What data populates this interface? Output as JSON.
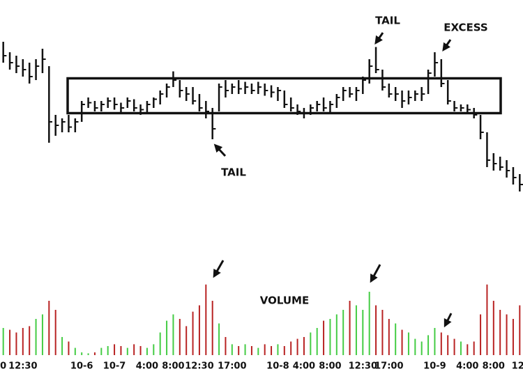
{
  "chart_data": {
    "type": "ohlc",
    "color": "#111111",
    "ylim": [
      0,
      100
    ],
    "categories": [
      "0",
      null,
      null,
      "12:30",
      null,
      null,
      null,
      null,
      null,
      null,
      null,
      null,
      "10-6",
      null,
      null,
      null,
      null,
      "10-7",
      null,
      null,
      null,
      null,
      "4:00",
      null,
      null,
      null,
      "8:00",
      null,
      null,
      null,
      "12:30",
      null,
      null,
      null,
      null,
      "17:00",
      null,
      null,
      null,
      null,
      null,
      null,
      "10-8",
      null,
      null,
      null,
      "4:00",
      null,
      null,
      null,
      "8:00",
      null,
      null,
      null,
      null,
      "12:30",
      null,
      null,
      null,
      "17:00",
      null,
      null,
      null,
      null,
      null,
      null,
      "10-9",
      null,
      null,
      null,
      null,
      "4:00",
      null,
      null,
      null,
      "8:00",
      null,
      null,
      null,
      "12:"
    ],
    "high": [
      96,
      90,
      88,
      86,
      84,
      86,
      92,
      82,
      54,
      52,
      54,
      52,
      62,
      64,
      62,
      62,
      64,
      64,
      61,
      64,
      63,
      60,
      62,
      64,
      68,
      72,
      79,
      74,
      70,
      70,
      66,
      62,
      58,
      72,
      74,
      72,
      74,
      73,
      72,
      73,
      72,
      71,
      70,
      68,
      64,
      60,
      58,
      60,
      62,
      64,
      62,
      66,
      70,
      70,
      70,
      76,
      86,
      93,
      80,
      72,
      70,
      68,
      68,
      68,
      70,
      80,
      90,
      86,
      74,
      62,
      60,
      60,
      58,
      54,
      44,
      32,
      30,
      28,
      24,
      20
    ],
    "low": [
      84,
      80,
      78,
      76,
      72,
      74,
      78,
      38,
      42,
      44,
      44,
      44,
      50,
      58,
      56,
      56,
      58,
      57,
      55,
      58,
      56,
      54,
      55,
      58,
      60,
      64,
      70,
      64,
      62,
      60,
      56,
      52,
      40,
      56,
      64,
      66,
      66,
      66,
      66,
      66,
      65,
      64,
      62,
      58,
      56,
      54,
      52,
      54,
      56,
      56,
      55,
      58,
      62,
      64,
      62,
      66,
      72,
      78,
      68,
      64,
      62,
      58,
      60,
      62,
      62,
      66,
      76,
      70,
      60,
      56,
      56,
      55,
      52,
      40,
      24,
      22,
      22,
      18,
      14,
      10
    ],
    "close": [
      88,
      84,
      82,
      80,
      76,
      82,
      86,
      50,
      48,
      50,
      47,
      50,
      60,
      61,
      58,
      60,
      62,
      60,
      58,
      62,
      58,
      57,
      60,
      63,
      66,
      70,
      74,
      68,
      66,
      62,
      58,
      56,
      46,
      70,
      68,
      70,
      69,
      70,
      68,
      70,
      68,
      67,
      68,
      60,
      58,
      56,
      55,
      58,
      60,
      58,
      60,
      64,
      68,
      66,
      68,
      74,
      82,
      80,
      70,
      66,
      66,
      62,
      64,
      66,
      66,
      78,
      84,
      72,
      62,
      58,
      58,
      57,
      54,
      44,
      28,
      26,
      24,
      22,
      18,
      14
    ],
    "value_area": {
      "high": 75,
      "low": 55
    },
    "annotations": [
      "TAIL",
      "TAIL",
      "EXCESS"
    ],
    "volume": {
      "label": "VOLUME",
      "ylim": [
        0,
        100
      ],
      "up_color": "#44cc44",
      "down_color": "#b82222",
      "values": [
        30,
        28,
        25,
        30,
        32,
        40,
        45,
        60,
        50,
        20,
        15,
        8,
        3,
        2,
        3,
        8,
        10,
        12,
        10,
        8,
        12,
        10,
        8,
        12,
        25,
        38,
        45,
        40,
        32,
        48,
        55,
        78,
        60,
        35,
        20,
        12,
        10,
        12,
        10,
        8,
        12,
        10,
        12,
        10,
        15,
        18,
        20,
        25,
        30,
        38,
        40,
        45,
        50,
        60,
        55,
        50,
        70,
        55,
        50,
        40,
        35,
        28,
        25,
        18,
        15,
        22,
        30,
        25,
        22,
        18,
        15,
        12,
        15,
        45,
        78,
        60,
        50,
        45,
        40,
        55
      ]
    }
  }
}
